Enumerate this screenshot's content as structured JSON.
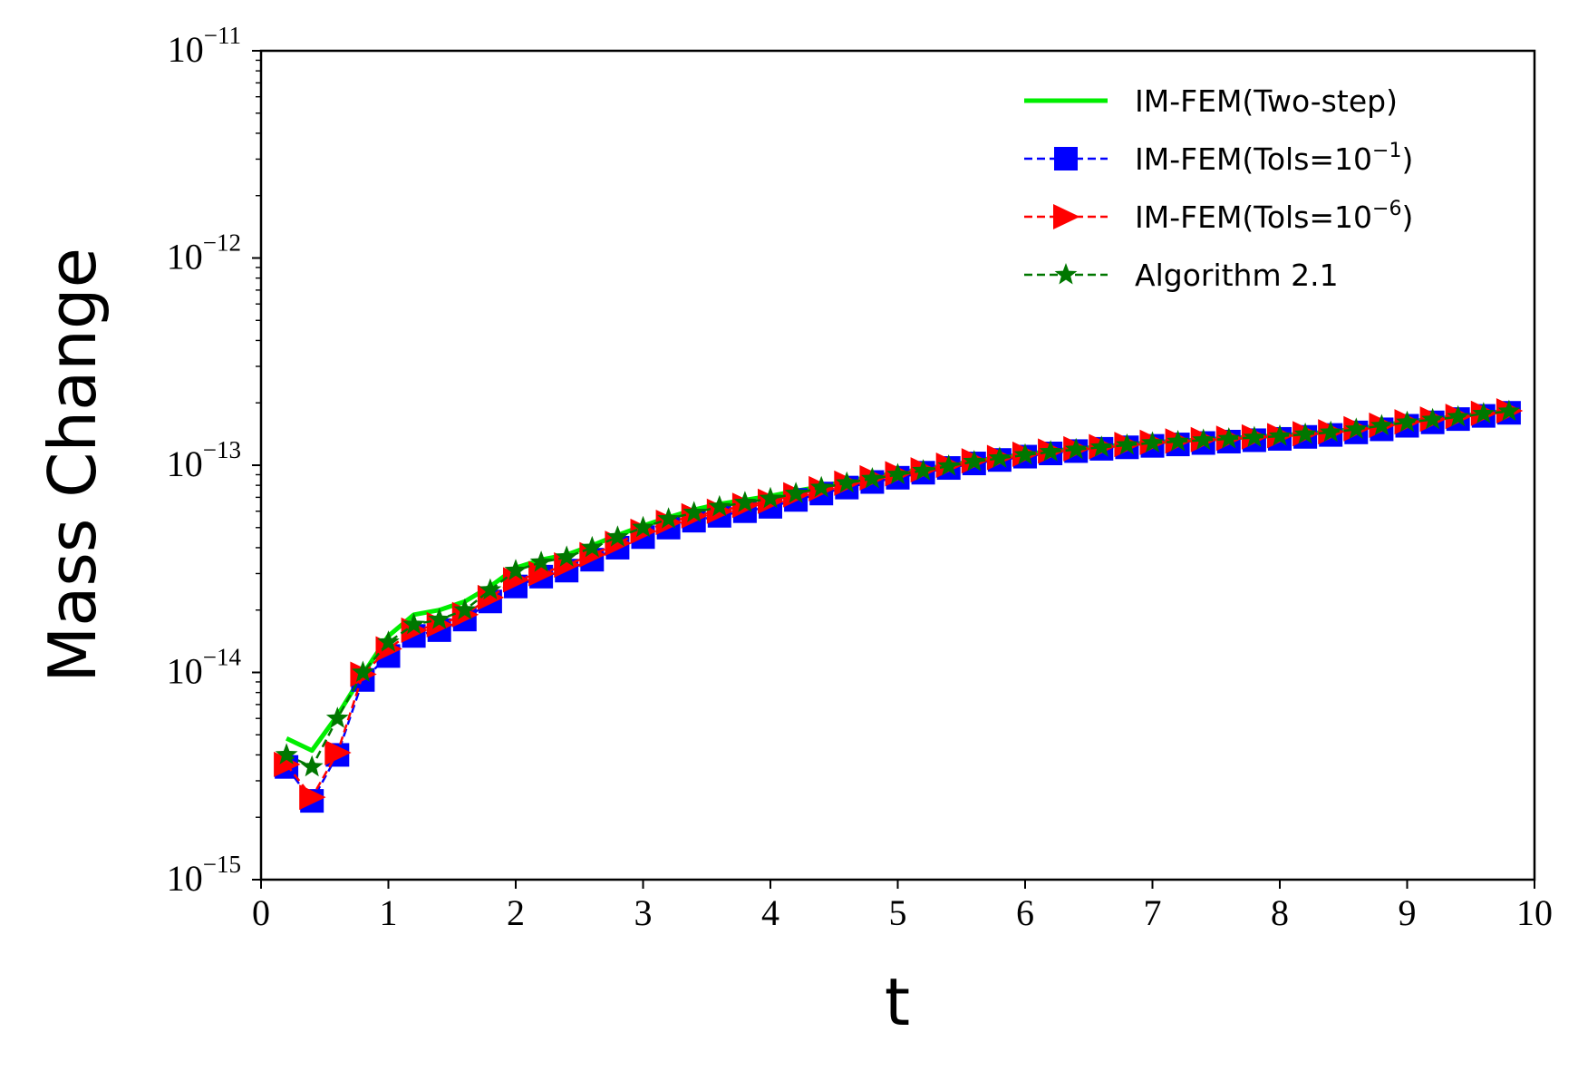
{
  "chart_data": {
    "type": "line",
    "xlabel": "t",
    "ylabel": "Mass Change",
    "xlim": [
      0,
      10
    ],
    "ylim": [
      1e-15,
      1e-11
    ],
    "yscale": "log",
    "grid": false,
    "legend_position": "top-right",
    "x_ticks": [
      {
        "value": 0,
        "label": "0"
      },
      {
        "value": 1,
        "label": "1"
      },
      {
        "value": 2,
        "label": "2"
      },
      {
        "value": 3,
        "label": "3"
      },
      {
        "value": 4,
        "label": "4"
      },
      {
        "value": 5,
        "label": "5"
      },
      {
        "value": 6,
        "label": "6"
      },
      {
        "value": 7,
        "label": "7"
      },
      {
        "value": 8,
        "label": "8"
      },
      {
        "value": 9,
        "label": "9"
      },
      {
        "value": 10,
        "label": "10"
      }
    ],
    "y_ticks": [
      {
        "value": 1e-15,
        "base": "10",
        "exp": "−15"
      },
      {
        "value": 1e-14,
        "base": "10",
        "exp": "−14"
      },
      {
        "value": 1e-13,
        "base": "10",
        "exp": "−13"
      },
      {
        "value": 1e-12,
        "base": "10",
        "exp": "−12"
      },
      {
        "value": 1e-11,
        "base": "10",
        "exp": "−11"
      }
    ],
    "x": [
      0.2,
      0.4,
      0.6,
      0.8,
      1.0,
      1.2,
      1.4,
      1.6,
      1.8,
      2.0,
      2.2,
      2.4,
      2.6,
      2.8,
      3.0,
      3.2,
      3.4,
      3.6,
      3.8,
      4.0,
      4.2,
      4.4,
      4.6,
      4.8,
      5.0,
      5.2,
      5.4,
      5.6,
      5.8,
      6.0,
      6.2,
      6.4,
      6.6,
      6.8,
      7.0,
      7.2,
      7.4,
      7.6,
      7.8,
      8.0,
      8.2,
      8.4,
      8.6,
      8.8,
      9.0,
      9.2,
      9.4,
      9.6,
      9.8
    ],
    "series": [
      {
        "name": "IM-FEM(Two-step)",
        "name_parts": {
          "base": "IM-FEM(Two-step)",
          "sup": "",
          "tail": ""
        },
        "color": "#00ee00",
        "line_style": "solid",
        "marker": "none",
        "values": [
          4.8e-15,
          4.2e-15,
          6.2e-15,
          9.8e-15,
          1.5e-14,
          1.9e-14,
          2e-14,
          2.2e-14,
          2.6e-14,
          3.2e-14,
          3.5e-14,
          3.7e-14,
          4.1e-14,
          4.6e-14,
          5.1e-14,
          5.6e-14,
          6.1e-14,
          6.5e-14,
          6.8e-14,
          7.1e-14,
          7.5e-14,
          7.9e-14,
          8.4e-14,
          8.8e-14,
          9.2e-14,
          9.6e-14,
          1e-13,
          1.05e-13,
          1.09e-13,
          1.13e-13,
          1.17e-13,
          1.2e-13,
          1.23e-13,
          1.26e-13,
          1.29e-13,
          1.31e-13,
          1.33e-13,
          1.35e-13,
          1.37e-13,
          1.39e-13,
          1.42e-13,
          1.45e-13,
          1.5e-13,
          1.56e-13,
          1.62e-13,
          1.67e-13,
          1.72e-13,
          1.78e-13,
          1.83e-13
        ]
      },
      {
        "name": "IM-FEM(Tols=10−1)",
        "name_parts": {
          "base": "IM-FEM(Tols=10",
          "sup": "−1",
          "tail": ")"
        },
        "color": "#0000ff",
        "line_style": "dashed",
        "marker": "square",
        "values": [
          3.5e-15,
          2.4e-15,
          4e-15,
          9.2e-15,
          1.2e-14,
          1.5e-14,
          1.6e-14,
          1.8e-14,
          2.2e-14,
          2.6e-14,
          2.9e-14,
          3.1e-14,
          3.5e-14,
          4e-14,
          4.5e-14,
          5e-14,
          5.4e-14,
          5.7e-14,
          6e-14,
          6.3e-14,
          6.8e-14,
          7.3e-14,
          7.8e-14,
          8.3e-14,
          8.7e-14,
          9.2e-14,
          9.7e-14,
          1.02e-13,
          1.06e-13,
          1.1e-13,
          1.14e-13,
          1.17e-13,
          1.2e-13,
          1.22e-13,
          1.24e-13,
          1.26e-13,
          1.28e-13,
          1.3e-13,
          1.32e-13,
          1.34e-13,
          1.37e-13,
          1.4e-13,
          1.44e-13,
          1.49e-13,
          1.55e-13,
          1.61e-13,
          1.67e-13,
          1.73e-13,
          1.79e-13
        ]
      },
      {
        "name": "IM-FEM(Tols=10−6)",
        "name_parts": {
          "base": "IM-FEM(Tols=10",
          "sup": "−6",
          "tail": ")"
        },
        "color": "#ff0000",
        "line_style": "dashed",
        "marker": "triangle-right",
        "values": [
          3.6e-15,
          2.5e-15,
          4.1e-15,
          9.8e-15,
          1.3e-14,
          1.6e-14,
          1.7e-14,
          1.9e-14,
          2.3e-14,
          2.8e-14,
          3e-14,
          3.3e-14,
          3.7e-14,
          4.2e-14,
          4.8e-14,
          5.3e-14,
          5.7e-14,
          6e-14,
          6.4e-14,
          6.7e-14,
          7.2e-14,
          7.7e-14,
          8.2e-14,
          8.7e-14,
          9.1e-14,
          9.5e-14,
          1e-13,
          1.05e-13,
          1.09e-13,
          1.13e-13,
          1.17e-13,
          1.2e-13,
          1.23e-13,
          1.26e-13,
          1.29e-13,
          1.31e-13,
          1.33e-13,
          1.35e-13,
          1.37e-13,
          1.39e-13,
          1.42e-13,
          1.45e-13,
          1.5e-13,
          1.56e-13,
          1.62e-13,
          1.67e-13,
          1.72e-13,
          1.78e-13,
          1.83e-13
        ]
      },
      {
        "name": "Algorithm 2.1",
        "name_parts": {
          "base": "Algorithm 2.1",
          "sup": "",
          "tail": ""
        },
        "color": "#007700",
        "line_style": "dashed",
        "marker": "star",
        "values": [
          4e-15,
          3.5e-15,
          6e-15,
          1e-14,
          1.4e-14,
          1.7e-14,
          1.8e-14,
          2e-14,
          2.5e-14,
          3.1e-14,
          3.4e-14,
          3.6e-14,
          4e-14,
          4.5e-14,
          5e-14,
          5.5e-14,
          5.9e-14,
          6.3e-14,
          6.6e-14,
          6.9e-14,
          7.3e-14,
          7.8e-14,
          8.2e-14,
          8.6e-14,
          9e-14,
          9.4e-14,
          9.9e-14,
          1.04e-13,
          1.08e-13,
          1.12e-13,
          1.16e-13,
          1.19e-13,
          1.22e-13,
          1.25e-13,
          1.28e-13,
          1.3e-13,
          1.32e-13,
          1.34e-13,
          1.36e-13,
          1.38e-13,
          1.41e-13,
          1.44e-13,
          1.49e-13,
          1.55e-13,
          1.61e-13,
          1.66e-13,
          1.71e-13,
          1.77e-13,
          1.82e-13
        ]
      }
    ]
  }
}
